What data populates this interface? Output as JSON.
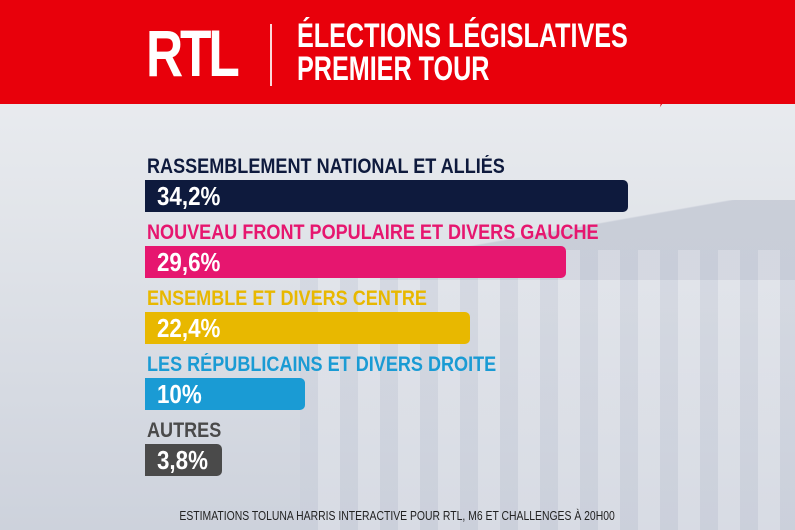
{
  "header": {
    "logo": "RTL",
    "title_line1": "ÉLECTIONS LÉGISLATIVES",
    "title_line2": "PREMIER TOUR",
    "color": "#e8000b"
  },
  "chart_data": {
    "type": "bar",
    "orientation": "horizontal",
    "title": "ÉLECTIONS LÉGISLATIVES PREMIER TOUR",
    "categories": [
      "RASSEMBLEMENT NATIONAL ET ALLIÉS",
      "NOUVEAU FRONT POPULAIRE ET DIVERS GAUCHE",
      "ENSEMBLE ET DIVERS CENTRE",
      "LES RÉPUBLICAINS ET DIVERS DROITE",
      "AUTRES"
    ],
    "values": [
      34.2,
      29.6,
      22.4,
      10,
      3.8
    ],
    "value_labels": [
      "34,2%",
      "29,6%",
      "22,4%",
      "10%",
      "3,8%"
    ],
    "colors": [
      "#0e1a3d",
      "#e6166f",
      "#e8b800",
      "#1a9bd4",
      "#4a4a4a"
    ],
    "label_colors": [
      "#0e1a3d",
      "#e6166f",
      "#e8b800",
      "#1a9bd4",
      "#4a4a4a"
    ],
    "unit": "%"
  },
  "footer": {
    "source": "ESTIMATIONS TOLUNA HARRIS INTERACTIVE POUR RTL, M6 ET CHALLENGES À 20H00"
  }
}
